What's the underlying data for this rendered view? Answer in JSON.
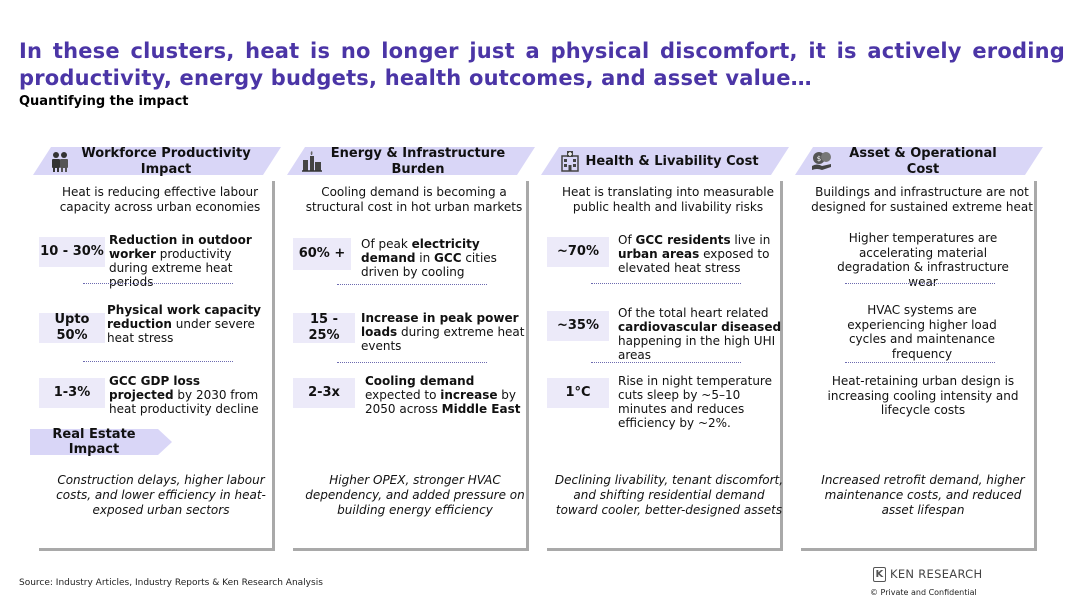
{
  "title": "In these clusters, heat is no longer just a physical discomfort, it is actively eroding productivity, energy budgets, health outcomes, and asset value…",
  "subtitle": "Quantifying the impact",
  "columns": [
    {
      "heading": "Workforce Productivity Impact",
      "icon": "workers-icon",
      "intro": "Heat is reducing effective labour capacity across urban economies",
      "stats": [
        {
          "value": "10 - 30%",
          "parts": [
            {
              "t": "Reduction in outdoor worker",
              "b": true
            },
            {
              "t": " productivity during extreme heat periods",
              "b": false
            }
          ]
        },
        {
          "value": "Upto 50%",
          "parts": [
            {
              "t": "Physical work capacity reduction",
              "b": true
            },
            {
              "t": " under severe heat stress",
              "b": false
            }
          ]
        },
        {
          "value": "1-3%",
          "parts": [
            {
              "t": "GCC GDP loss projected",
              "b": true
            },
            {
              "t": " by 2030 from heat productivity decline",
              "b": false
            }
          ]
        }
      ],
      "summary": "Construction delays, higher labour costs, and lower efficiency in heat-exposed urban sectors"
    },
    {
      "heading": "Energy & Infrastructure Burden",
      "icon": "power-plant-icon",
      "intro": "Cooling demand is becoming a structural cost in hot urban markets",
      "stats": [
        {
          "value": "60% +",
          "parts": [
            {
              "t": "Of peak ",
              "b": false
            },
            {
              "t": "electricity demand",
              "b": true
            },
            {
              "t": " in ",
              "b": false
            },
            {
              "t": "GCC",
              "b": true
            },
            {
              "t": " cities driven by cooling",
              "b": false
            }
          ]
        },
        {
          "value": "15 - 25%",
          "parts": [
            {
              "t": "Increase in peak power loads",
              "b": true
            },
            {
              "t": " during extreme heat events",
              "b": false
            }
          ]
        },
        {
          "value": "2-3x",
          "parts": [
            {
              "t": "Cooling demand",
              "b": true
            },
            {
              "t": " expected to ",
              "b": false
            },
            {
              "t": " increase",
              "b": true
            },
            {
              "t": " by 2050 across ",
              "b": false
            },
            {
              "t": "Middle East",
              "b": true
            }
          ]
        }
      ],
      "summary": "Higher OPEX, stronger HVAC dependency, and added pressure on building energy efficiency"
    },
    {
      "heading": "Health & Livability Cost",
      "icon": "hospital-icon",
      "intro": "Heat is translating into measurable public health and livability risks",
      "stats": [
        {
          "value": "~70%",
          "parts": [
            {
              "t": "Of ",
              "b": false
            },
            {
              "t": "GCC residents",
              "b": true
            },
            {
              "t": " live in ",
              "b": false
            },
            {
              "t": "urban areas",
              "b": true
            },
            {
              "t": " exposed to elevated heat stress",
              "b": false
            }
          ]
        },
        {
          "value": "~35%",
          "parts": [
            {
              "t": "Of the total heart related ",
              "b": false
            },
            {
              "t": "cardiovascular diseased",
              "b": true
            },
            {
              "t": " happening in the high UHI areas",
              "b": false
            }
          ]
        },
        {
          "value": "1°C",
          "parts": [
            {
              "t": "Rise in night temperature cuts sleep by ~5–10 minutes and reduces efficiency by ~2%.",
              "b": false
            }
          ]
        }
      ],
      "summary": "Declining livability, tenant discomfort, and shifting residential demand toward cooler, better-designed assets"
    },
    {
      "heading": "Asset & Operational Cost",
      "icon": "coins-icon",
      "intro": "Buildings and infrastructure are not designed for sustained extreme heat",
      "points": [
        "Higher temperatures are accelerating material degradation & infrastructure wear",
        "HVAC systems are experiencing higher load cycles and maintenance frequency",
        "Heat-retaining urban design is increasing cooling intensity and lifecycle costs"
      ],
      "summary": "Increased retrofit demand, higher maintenance costs, and reduced asset lifespan"
    }
  ],
  "real_estate_tag": "Real Estate Impact",
  "source": "Source: Industry Articles, Industry Reports & Ken Research Analysis",
  "logo": {
    "mark": "K",
    "text": "KEN RESEARCH"
  },
  "confidential": "©   Private and Confidential"
}
